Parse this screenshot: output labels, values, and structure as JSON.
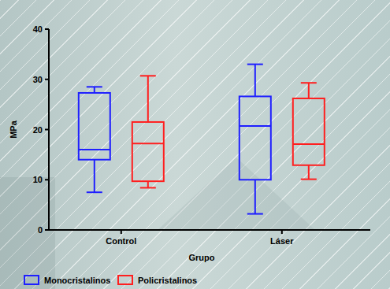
{
  "chart_data": {
    "type": "box",
    "categories": [
      "Control",
      "Láser"
    ],
    "x_label": "Grupo",
    "y_label": "MPa",
    "ylim": [
      0,
      40
    ],
    "yticks": [
      0,
      10,
      20,
      30,
      40
    ],
    "legend": "bottom",
    "series": [
      {
        "name": "Monocristalinos",
        "color": "#1f1fff",
        "values": [
          {
            "min": 7.5,
            "q1": 14.0,
            "median": 16.0,
            "q3": 27.3,
            "max": 28.5
          },
          {
            "min": 3.2,
            "q1": 10.0,
            "median": 20.7,
            "q3": 26.6,
            "max": 33.0
          }
        ]
      },
      {
        "name": "Policristalinos",
        "color": "#ff1f1f",
        "values": [
          {
            "min": 8.4,
            "q1": 9.7,
            "median": 17.2,
            "q3": 21.5,
            "max": 30.7
          },
          {
            "min": 10.1,
            "q1": 12.9,
            "median": 17.1,
            "q3": 26.2,
            "max": 29.3
          }
        ]
      }
    ]
  }
}
